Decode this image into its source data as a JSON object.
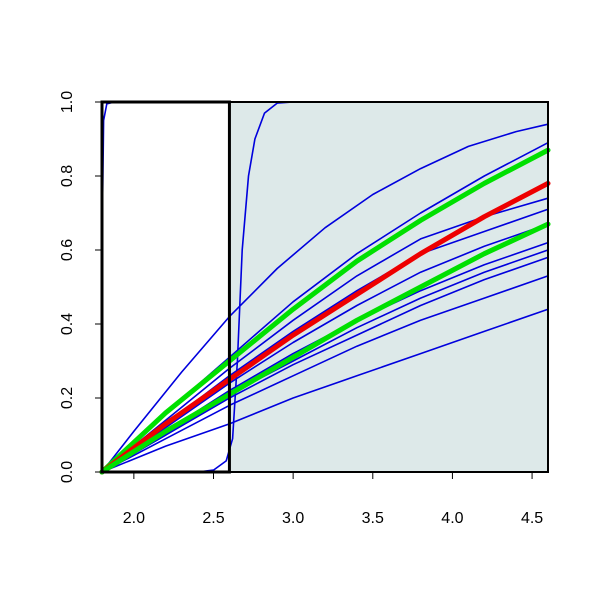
{
  "chart_data": {
    "type": "line",
    "title": "",
    "xlabel": "",
    "ylabel": "",
    "xlim": [
      1.8,
      4.6
    ],
    "ylim": [
      0,
      1
    ],
    "x_ticks": [
      "2.0",
      "2.5",
      "3.0",
      "3.5",
      "4.0",
      "4.5"
    ],
    "y_ticks": [
      "0.0",
      "0.2",
      "0.4",
      "0.6",
      "0.8",
      "1.0"
    ],
    "grid": false,
    "legend": "none",
    "shaded_region": {
      "x_from": 2.6,
      "x_to": 4.6,
      "color": "#dde9e9"
    },
    "highlight_box": {
      "x_from": 1.8,
      "x_to": 2.6,
      "y_from": 0,
      "y_to": 1
    },
    "series": [
      {
        "color": "#0000dd",
        "width": 1.6,
        "points": [
          [
            1.8,
            0
          ],
          [
            1.8,
            0.6
          ],
          [
            1.81,
            0.95
          ],
          [
            1.83,
            0.995
          ],
          [
            1.88,
            1
          ],
          [
            4.6,
            1
          ]
        ]
      },
      {
        "color": "#0000dd",
        "width": 1.6,
        "points": [
          [
            1.8,
            0
          ],
          [
            2.4,
            0
          ],
          [
            2.5,
            0.005
          ],
          [
            2.58,
            0.03
          ],
          [
            2.62,
            0.09
          ],
          [
            2.65,
            0.3
          ],
          [
            2.68,
            0.6
          ],
          [
            2.72,
            0.8
          ],
          [
            2.76,
            0.9
          ],
          [
            2.82,
            0.97
          ],
          [
            2.9,
            0.997
          ],
          [
            3.0,
            1
          ],
          [
            4.6,
            1
          ]
        ]
      },
      {
        "color": "#0000dd",
        "width": 1.6,
        "points": [
          [
            1.8,
            0
          ],
          [
            2.0,
            0.11
          ],
          [
            2.3,
            0.27
          ],
          [
            2.6,
            0.42
          ],
          [
            2.9,
            0.55
          ],
          [
            3.2,
            0.66
          ],
          [
            3.5,
            0.75
          ],
          [
            3.8,
            0.82
          ],
          [
            4.1,
            0.88
          ],
          [
            4.4,
            0.92
          ],
          [
            4.6,
            0.94
          ]
        ]
      },
      {
        "color": "#0000dd",
        "width": 1.6,
        "points": [
          [
            1.8,
            0
          ],
          [
            2.2,
            0.16
          ],
          [
            2.6,
            0.31
          ],
          [
            3.0,
            0.46
          ],
          [
            3.4,
            0.59
          ],
          [
            3.8,
            0.7
          ],
          [
            4.2,
            0.8
          ],
          [
            4.6,
            0.89
          ]
        ]
      },
      {
        "color": "#0000dd",
        "width": 1.6,
        "points": [
          [
            1.8,
            0
          ],
          [
            2.2,
            0.14
          ],
          [
            2.6,
            0.28
          ],
          [
            3.0,
            0.41
          ],
          [
            3.4,
            0.53
          ],
          [
            3.8,
            0.63
          ],
          [
            4.2,
            0.69
          ],
          [
            4.6,
            0.74
          ]
        ]
      },
      {
        "color": "#0000dd",
        "width": 1.6,
        "points": [
          [
            1.8,
            0
          ],
          [
            2.2,
            0.13
          ],
          [
            2.6,
            0.26
          ],
          [
            3.0,
            0.38
          ],
          [
            3.4,
            0.49
          ],
          [
            3.8,
            0.59
          ],
          [
            4.2,
            0.65
          ],
          [
            4.6,
            0.71
          ]
        ]
      },
      {
        "color": "#0000dd",
        "width": 1.6,
        "points": [
          [
            1.8,
            0
          ],
          [
            2.2,
            0.12
          ],
          [
            2.6,
            0.24
          ],
          [
            3.0,
            0.35
          ],
          [
            3.4,
            0.45
          ],
          [
            3.8,
            0.54
          ],
          [
            4.2,
            0.61
          ],
          [
            4.6,
            0.67
          ]
        ]
      },
      {
        "color": "#0000dd",
        "width": 1.6,
        "points": [
          [
            1.8,
            0
          ],
          [
            2.2,
            0.11
          ],
          [
            2.6,
            0.22
          ],
          [
            3.0,
            0.32
          ],
          [
            3.4,
            0.41
          ],
          [
            3.8,
            0.49
          ],
          [
            4.2,
            0.56
          ],
          [
            4.6,
            0.62
          ]
        ]
      },
      {
        "color": "#0000dd",
        "width": 1.6,
        "points": [
          [
            1.8,
            0
          ],
          [
            2.2,
            0.1
          ],
          [
            2.6,
            0.21
          ],
          [
            3.0,
            0.3
          ],
          [
            3.4,
            0.39
          ],
          [
            3.8,
            0.47
          ],
          [
            4.2,
            0.54
          ],
          [
            4.6,
            0.6
          ]
        ]
      },
      {
        "color": "#0000dd",
        "width": 1.6,
        "points": [
          [
            1.8,
            0
          ],
          [
            2.2,
            0.1
          ],
          [
            2.6,
            0.2
          ],
          [
            3.0,
            0.29
          ],
          [
            3.4,
            0.37
          ],
          [
            3.8,
            0.45
          ],
          [
            4.2,
            0.52
          ],
          [
            4.6,
            0.58
          ]
        ]
      },
      {
        "color": "#0000dd",
        "width": 1.6,
        "points": [
          [
            1.8,
            0
          ],
          [
            2.2,
            0.09
          ],
          [
            2.6,
            0.18
          ],
          [
            3.0,
            0.26
          ],
          [
            3.4,
            0.34
          ],
          [
            3.8,
            0.41
          ],
          [
            4.2,
            0.47
          ],
          [
            4.6,
            0.53
          ]
        ]
      },
      {
        "color": "#0000dd",
        "width": 1.6,
        "points": [
          [
            1.8,
            0
          ],
          [
            2.2,
            0.07
          ],
          [
            2.6,
            0.13
          ],
          [
            3.0,
            0.2
          ],
          [
            3.4,
            0.26
          ],
          [
            3.8,
            0.32
          ],
          [
            4.2,
            0.38
          ],
          [
            4.6,
            0.44
          ]
        ]
      },
      {
        "color": "#00e000",
        "width": 5,
        "points": [
          [
            1.8,
            0
          ],
          [
            2.2,
            0.16
          ],
          [
            2.6,
            0.3
          ],
          [
            3.0,
            0.44
          ],
          [
            3.4,
            0.57
          ],
          [
            3.8,
            0.68
          ],
          [
            4.2,
            0.78
          ],
          [
            4.6,
            0.87
          ]
        ]
      },
      {
        "color": "#ee0000",
        "width": 5,
        "points": [
          [
            1.8,
            0
          ],
          [
            2.2,
            0.13
          ],
          [
            2.6,
            0.25
          ],
          [
            3.0,
            0.37
          ],
          [
            3.4,
            0.48
          ],
          [
            3.8,
            0.59
          ],
          [
            4.2,
            0.69
          ],
          [
            4.6,
            0.78
          ]
        ]
      },
      {
        "color": "#00e000",
        "width": 5,
        "points": [
          [
            1.8,
            0
          ],
          [
            2.2,
            0.11
          ],
          [
            2.6,
            0.21
          ],
          [
            3.0,
            0.31
          ],
          [
            3.4,
            0.41
          ],
          [
            3.8,
            0.5
          ],
          [
            4.2,
            0.59
          ],
          [
            4.6,
            0.67
          ]
        ]
      }
    ]
  }
}
